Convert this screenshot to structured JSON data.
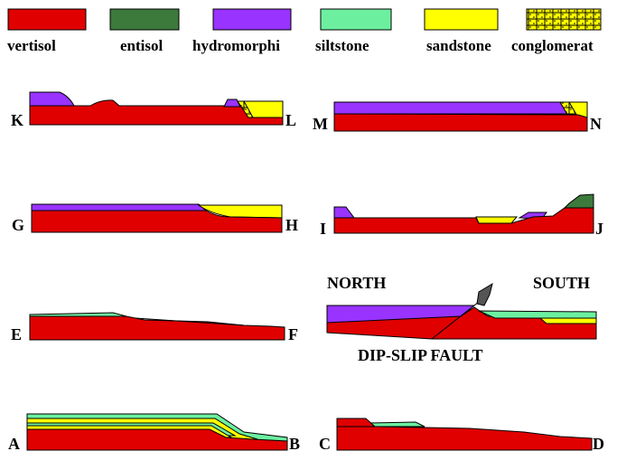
{
  "legend": [
    "vertisol",
    "entisol",
    "hydromorphi",
    "siltstone",
    "sandstone",
    "conglomerat"
  ],
  "sections": [
    "K",
    "L",
    "M",
    "N",
    "G",
    "H",
    "I",
    "J",
    "E",
    "F",
    "C",
    "D",
    "A",
    "B"
  ],
  "annotations": {
    "north": "NORTH",
    "south": "SOUTH",
    "fault": "DIP-SLIP FAULT"
  }
}
